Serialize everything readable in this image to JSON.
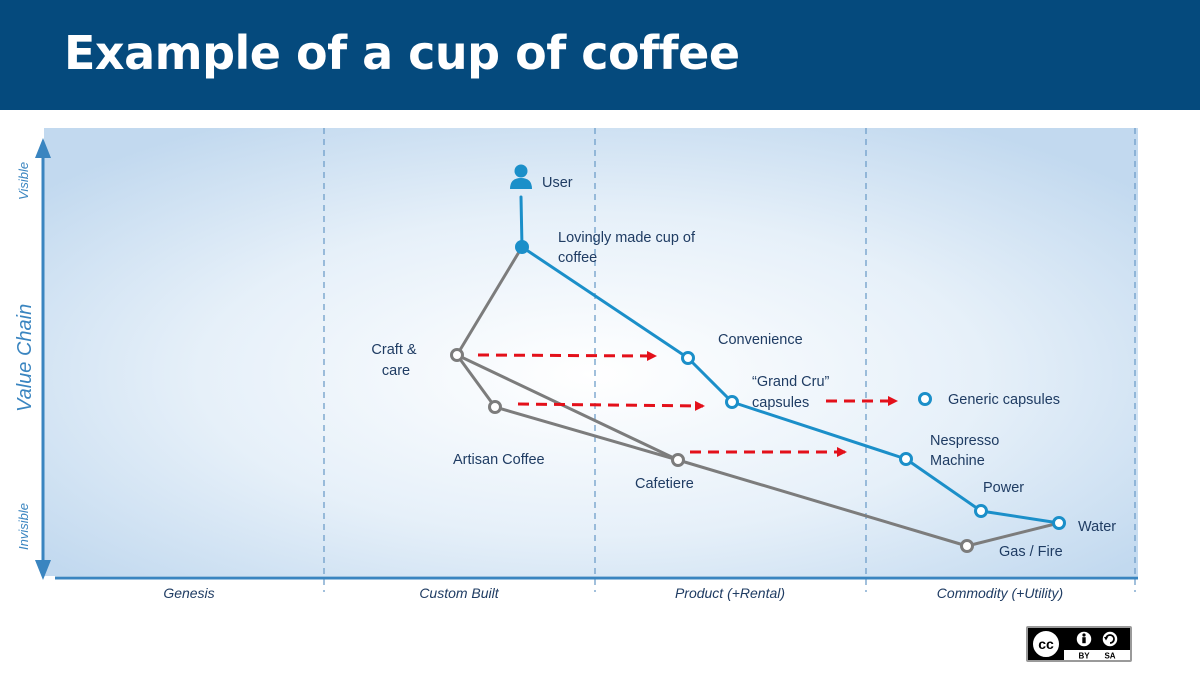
{
  "title": "Example of a cup of coffee",
  "axes": {
    "y_label": "Value Chain",
    "y_top": "Visible",
    "y_bottom": "Invisible",
    "x_stages": [
      "Genesis",
      "Custom Built",
      "Product (+Rental)",
      "Commodity (+Utility)"
    ]
  },
  "nodes": {
    "user": "User",
    "cup": "Lovingly made cup of coffee",
    "craft": "Craft & care",
    "artisan": "Artisan Coffee",
    "cafetiere": "Cafetiere",
    "gas": "Gas / Fire",
    "convenience": "Convenience",
    "grandcru": "“Grand Cru” capsules",
    "generic": "Generic capsules",
    "nespresso": "Nespresso Machine",
    "power": "Power",
    "water": "Water"
  },
  "license": {
    "badge": "cc",
    "terms": [
      "BY",
      "SA"
    ],
    "icon": "cc-by-sa-icon"
  },
  "colors": {
    "header": "#054a7d",
    "blue_chain": "#1b8fc9",
    "grey_chain": "#7c7c7c",
    "arrows": "#e3101a",
    "axis": "#3a85c0"
  }
}
